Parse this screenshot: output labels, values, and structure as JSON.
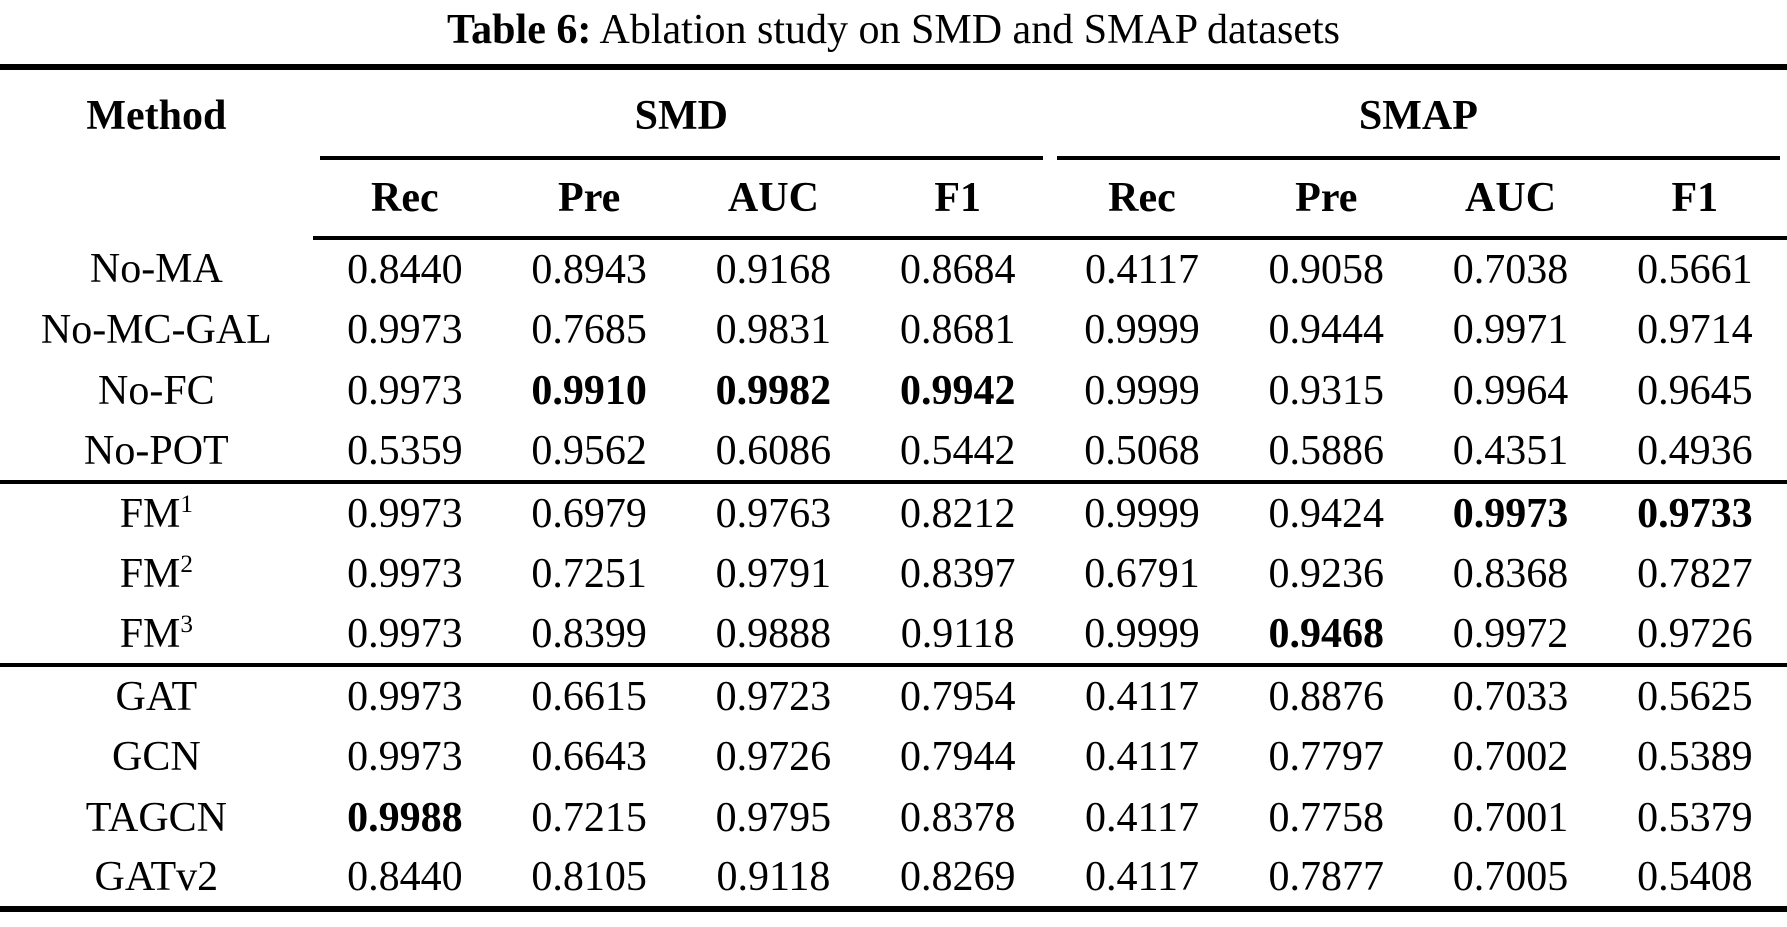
{
  "page": {
    "background": "#ffffff",
    "text_color": "#000000",
    "rule_color": "#000000"
  },
  "caption": {
    "prefix": "Table 6:",
    "text": " Ablation study on SMD and SMAP datasets"
  },
  "table": {
    "method_header": "Method",
    "groups": [
      {
        "label": "SMD",
        "columns": [
          "Rec",
          "Pre",
          "AUC",
          "F1"
        ]
      },
      {
        "label": "SMAP",
        "columns": [
          "Rec",
          "Pre",
          "AUC",
          "F1"
        ]
      }
    ],
    "sections": [
      {
        "rows": [
          {
            "method": "No-MA",
            "superscript": "",
            "values": [
              "0.8440",
              "0.8943",
              "0.9168",
              "0.8684",
              "0.4117",
              "0.9058",
              "0.7038",
              "0.5661"
            ],
            "bold": []
          },
          {
            "method": "No-MC-GAL",
            "superscript": "",
            "values": [
              "0.9973",
              "0.7685",
              "0.9831",
              "0.8681",
              "0.9999",
              "0.9444",
              "0.9971",
              "0.9714"
            ],
            "bold": []
          },
          {
            "method": "No-FC",
            "superscript": "",
            "values": [
              "0.9973",
              "0.9910",
              "0.9982",
              "0.9942",
              "0.9999",
              "0.9315",
              "0.9964",
              "0.9645"
            ],
            "bold": [
              1,
              2,
              3
            ]
          },
          {
            "method": "No-POT",
            "superscript": "",
            "values": [
              "0.5359",
              "0.9562",
              "0.6086",
              "0.5442",
              "0.5068",
              "0.5886",
              "0.4351",
              "0.4936"
            ],
            "bold": []
          }
        ]
      },
      {
        "rows": [
          {
            "method": "FM",
            "superscript": "1",
            "values": [
              "0.9973",
              "0.6979",
              "0.9763",
              "0.8212",
              "0.9999",
              "0.9424",
              "0.9973",
              "0.9733"
            ],
            "bold": [
              6,
              7
            ]
          },
          {
            "method": "FM",
            "superscript": "2",
            "values": [
              "0.9973",
              "0.7251",
              "0.9791",
              "0.8397",
              "0.6791",
              "0.9236",
              "0.8368",
              "0.7827"
            ],
            "bold": []
          },
          {
            "method": "FM",
            "superscript": "3",
            "values": [
              "0.9973",
              "0.8399",
              "0.9888",
              "0.9118",
              "0.9999",
              "0.9468",
              "0.9972",
              "0.9726"
            ],
            "bold": [
              5
            ]
          }
        ]
      },
      {
        "rows": [
          {
            "method": "GAT",
            "superscript": "",
            "values": [
              "0.9973",
              "0.6615",
              "0.9723",
              "0.7954",
              "0.4117",
              "0.8876",
              "0.7033",
              "0.5625"
            ],
            "bold": []
          },
          {
            "method": "GCN",
            "superscript": "",
            "values": [
              "0.9973",
              "0.6643",
              "0.9726",
              "0.7944",
              "0.4117",
              "0.7797",
              "0.7002",
              "0.5389"
            ],
            "bold": []
          },
          {
            "method": "TAGCN",
            "superscript": "",
            "values": [
              "0.9988",
              "0.7215",
              "0.9795",
              "0.8378",
              "0.4117",
              "0.7758",
              "0.7001",
              "0.5379"
            ],
            "bold": [
              0
            ]
          },
          {
            "method": "GATv2",
            "superscript": "",
            "values": [
              "0.8440",
              "0.8105",
              "0.9118",
              "0.8269",
              "0.4117",
              "0.7877",
              "0.7005",
              "0.5408"
            ],
            "bold": []
          }
        ]
      }
    ]
  }
}
